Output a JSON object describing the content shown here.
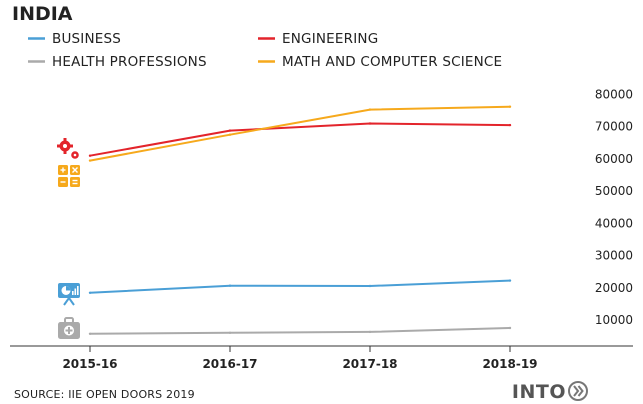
{
  "title": "INDIA",
  "source": "SOURCE: IIE OPEN DOORS 2019",
  "brand": "INTO",
  "icons": [
    "gears-icon",
    "calculator-icon",
    "presentation-board-icon",
    "medical-kit-icon"
  ],
  "chart_data": {
    "type": "line",
    "categories": [
      "2015-16",
      "2016-17",
      "2017-18",
      "2018-19"
    ],
    "yticks": [
      10000,
      20000,
      30000,
      40000,
      50000,
      60000,
      70000,
      80000
    ],
    "ylim": [
      0,
      80000
    ],
    "legend": "top-left",
    "grid": false,
    "series": [
      {
        "name": "BUSINESS",
        "color": "#4a9fd6",
        "values": [
          18500,
          20700,
          20600,
          22300
        ]
      },
      {
        "name": "ENGINEERING",
        "color": "#e3242b",
        "values": [
          61000,
          68800,
          71000,
          70500
        ]
      },
      {
        "name": "HEALTH PROFESSIONS",
        "color": "#aaaaaa",
        "values": [
          5800,
          6100,
          6400,
          7600
        ]
      },
      {
        "name": "MATH AND COMPUTER SCIENCE",
        "color": "#f6a91c",
        "values": [
          59500,
          67500,
          75300,
          76200
        ]
      }
    ]
  }
}
